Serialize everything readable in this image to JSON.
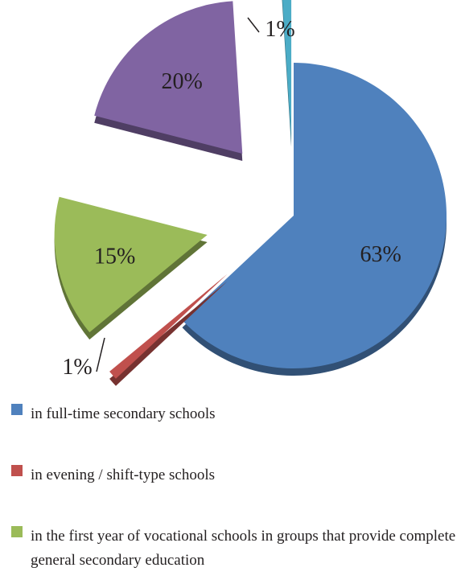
{
  "chart_data": {
    "type": "pie",
    "slices": [
      {
        "label": "in full-time secondary schools",
        "value": 63,
        "display": "63%",
        "color": "#4f81bd"
      },
      {
        "label": "in evening / shift-type schools",
        "value": 1,
        "display": "1%",
        "color": "#c0504d"
      },
      {
        "label": "in the first year of vocational schools in groups that provide complete general secondary education",
        "value": 15,
        "display": "15%",
        "color": "#9bbb59"
      },
      {
        "label": "",
        "value": 20,
        "display": "20%",
        "color": "#8064a2"
      },
      {
        "label": "",
        "value": 1,
        "display": "1%",
        "color": "#4bacc6"
      }
    ],
    "legend_position": "bottom"
  }
}
